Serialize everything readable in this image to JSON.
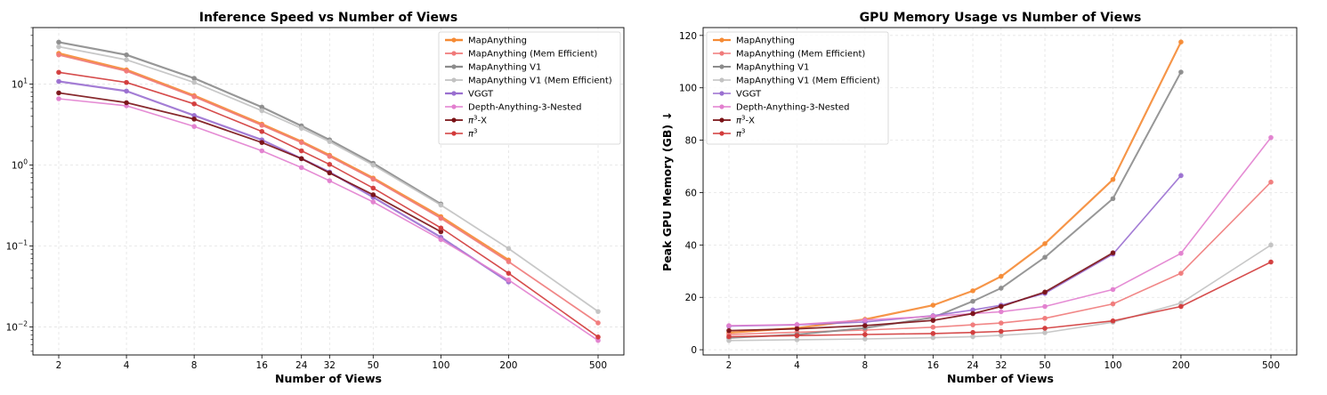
{
  "chart_data": [
    {
      "type": "line",
      "title": "Inference Speed vs Number of Views",
      "xlabel": "Number of Views",
      "ylabel": "",
      "xscale": "log",
      "yscale": "log",
      "x": [
        2,
        4,
        8,
        16,
        24,
        32,
        50,
        100,
        200,
        500
      ],
      "xticks": [
        "2",
        "4",
        "8",
        "16",
        "24",
        "32",
        "50",
        "100",
        "200",
        "500"
      ],
      "yticks": [
        "10^-2",
        "10^-1",
        "10^0",
        "10^1"
      ],
      "ylim": [
        0.0045,
        50
      ],
      "grid": true,
      "legend": "top-right",
      "series": [
        {
          "name": "MapAnything",
          "color": "#f58a34",
          "width": 2.6,
          "values": [
            24,
            15,
            7.2,
            3.2,
            1.95,
            1.32,
            0.69,
            0.23,
            0.067,
            null
          ]
        },
        {
          "name": "MapAnything (Mem Efficient)",
          "color": "#f07a7a",
          "width": 1.8,
          "values": [
            23,
            14.5,
            7.0,
            3.1,
            1.9,
            1.28,
            0.67,
            0.22,
            0.064,
            0.0112
          ]
        },
        {
          "name": "MapAnything V1",
          "color": "#8c8c8c",
          "width": 2.2,
          "values": [
            33,
            23,
            11.8,
            5.2,
            3.05,
            2.05,
            1.05,
            0.33,
            null,
            null
          ]
        },
        {
          "name": "MapAnything V1 (Mem Efficient)",
          "color": "#c2c2c2",
          "width": 1.8,
          "values": [
            29,
            20,
            10.5,
            4.7,
            2.85,
            1.95,
            1.0,
            0.32,
            0.093,
            0.0155
          ]
        },
        {
          "name": "VGGT",
          "color": "#9a6fd0",
          "width": 2.2,
          "values": [
            10.8,
            8.2,
            4.1,
            2.05,
            1.2,
            0.82,
            0.4,
            0.128,
            0.036,
            null
          ]
        },
        {
          "name": "Depth-Anything-3-Nested",
          "color": "#e27fcf",
          "width": 1.6,
          "values": [
            6.6,
            5.4,
            3.0,
            1.5,
            0.93,
            0.64,
            0.35,
            0.12,
            0.038,
            0.0068
          ]
        },
        {
          "name": "π³-X",
          "color": "#7a1216",
          "width": 1.8,
          "values": [
            7.8,
            5.9,
            3.7,
            1.9,
            1.2,
            0.8,
            0.43,
            0.15,
            null,
            null
          ]
        },
        {
          "name": "π³",
          "color": "#d23a3a",
          "width": 1.6,
          "values": [
            14,
            10.5,
            5.7,
            2.6,
            1.5,
            1.02,
            0.52,
            0.167,
            0.046,
            0.0075
          ]
        }
      ]
    },
    {
      "type": "line",
      "title": "GPU Memory Usage vs Number of Views",
      "xlabel": "Number of Views",
      "ylabel": "Peak GPU Memory (GB) ↓",
      "xscale": "log",
      "yscale": "linear",
      "x": [
        2,
        4,
        8,
        16,
        24,
        32,
        50,
        100,
        200,
        500
      ],
      "xticks": [
        "2",
        "4",
        "8",
        "16",
        "24",
        "32",
        "50",
        "100",
        "200",
        "500"
      ],
      "yticks": [
        "0",
        "20",
        "40",
        "60",
        "80",
        "100",
        "120"
      ],
      "ylim": [
        -2,
        123
      ],
      "grid": true,
      "legend": "top-left",
      "series": [
        {
          "name": "MapAnything",
          "color": "#f58a34",
          "width": 2.2,
          "values": [
            6.5,
            8.3,
            11.6,
            17,
            22.5,
            28,
            40.5,
            65,
            117.5,
            null
          ]
        },
        {
          "name": "MapAnything (Mem Efficient)",
          "color": "#f07a7a",
          "width": 1.6,
          "values": [
            5.8,
            6.7,
            7.5,
            8.6,
            9.5,
            10.2,
            12,
            17.5,
            29.2,
            64
          ]
        },
        {
          "name": "MapAnything V1",
          "color": "#8c8c8c",
          "width": 2.0,
          "values": [
            4.5,
            5.8,
            8.3,
            12.3,
            18.5,
            23.5,
            35.3,
            57.7,
            106,
            null
          ]
        },
        {
          "name": "MapAnything V1 (Mem Efficient)",
          "color": "#c2c2c2",
          "width": 1.6,
          "values": [
            3.5,
            3.8,
            4.1,
            4.6,
            5.0,
            5.5,
            6.5,
            10.5,
            17.8,
            40
          ]
        },
        {
          "name": "VGGT",
          "color": "#9a6fd0",
          "width": 1.6,
          "values": [
            9.0,
            9.5,
            10.6,
            13,
            15.2,
            17,
            21.5,
            36.5,
            66.5,
            null
          ]
        },
        {
          "name": "Depth-Anything-3-Nested",
          "color": "#e27fcf",
          "width": 1.6,
          "values": [
            9.2,
            9.6,
            11.3,
            12.8,
            13.8,
            14.5,
            16.5,
            23,
            36.8,
            81
          ]
        },
        {
          "name": "π³-X",
          "color": "#7a1216",
          "width": 1.8,
          "values": [
            7.3,
            8.0,
            9.2,
            11.2,
            13.8,
            16.5,
            22,
            37,
            null,
            null
          ]
        },
        {
          "name": "π³",
          "color": "#d23a3a",
          "width": 1.6,
          "values": [
            5.0,
            5.4,
            5.8,
            6.2,
            6.6,
            7.0,
            8.2,
            11,
            16.5,
            33.5
          ]
        }
      ]
    }
  ],
  "legend_labels": [
    {
      "text": "MapAnything"
    },
    {
      "text": "MapAnything (Mem Efficient)"
    },
    {
      "text": "MapAnything V1"
    },
    {
      "text": "MapAnything V1 (Mem Efficient)"
    },
    {
      "text": "VGGT"
    },
    {
      "text": "Depth-Anything-3-Nested"
    },
    {
      "text": "-X",
      "pi": true
    },
    {
      "text": "",
      "pi": true
    }
  ]
}
